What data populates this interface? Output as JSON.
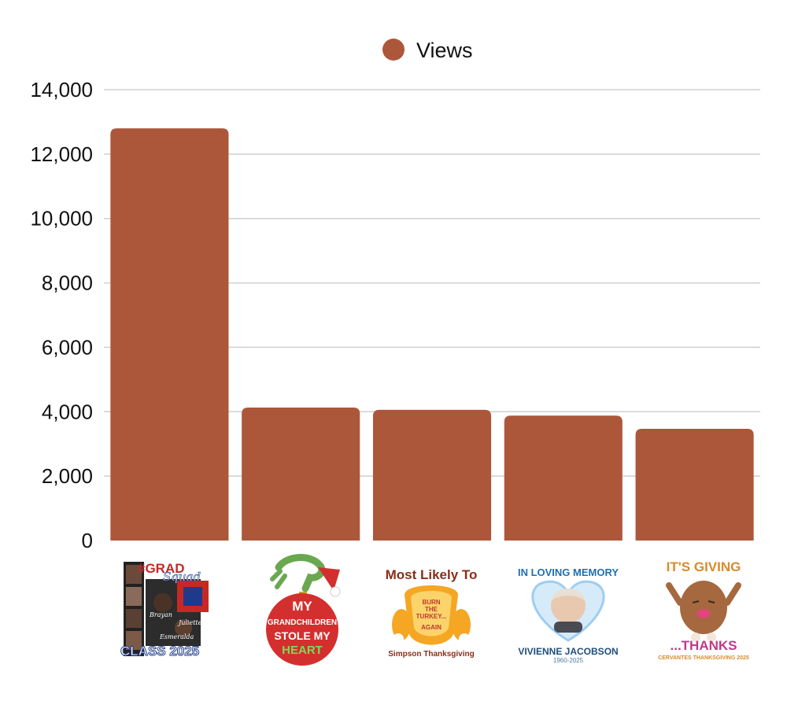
{
  "chart_data": {
    "type": "bar",
    "categories": [
      "#GRAD Squad Class 2025",
      "My Grandchildren Stole My Heart",
      "Most Likely To Burn The Turkey... Again - Simpson Thanksgiving",
      "In Loving Memory - Vivienne Jacobson 1960-2025",
      "It's Giving ...Thanks - Cervantes Thanksgiving 2025"
    ],
    "series": [
      {
        "name": "Views",
        "values": [
          12800,
          4130,
          4060,
          3880,
          3470
        ]
      }
    ],
    "ylim": [
      0,
      14000
    ],
    "yticks": [
      0,
      2000,
      4000,
      6000,
      8000,
      10000,
      12000,
      14000
    ],
    "ytick_labels": [
      "0",
      "2,000",
      "4,000",
      "6,000",
      "8,000",
      "10,000",
      "12,000",
      "14,000"
    ],
    "grid": true,
    "legend_position": "top-center",
    "bar_color": "#ad573a",
    "grid_color": "#cfcfcf"
  },
  "thumbnails": [
    {
      "icon": "grad-squad-photo-collage-icon",
      "lines": [
        "#GRAD",
        "Squad",
        "CLASS 2025"
      ],
      "names": [
        "Brayan",
        "Juliette",
        "Esmeralda"
      ]
    },
    {
      "icon": "grinch-hand-ornament-icon",
      "lines": [
        "MY",
        "GRANDCHILDREN",
        "STOLE MY",
        "HEART"
      ]
    },
    {
      "icon": "turkey-icon",
      "lines": [
        "Most Likely To",
        "BURN",
        "THE",
        "TURKEY...",
        "AGAIN",
        "Simpson Thanksgiving"
      ]
    },
    {
      "icon": "memorial-portrait-heart-icon",
      "lines": [
        "IN LOVING MEMORY",
        "VIVIENNE JACOBSON",
        "1960-2025"
      ]
    },
    {
      "icon": "giving-thanks-turkey-icon",
      "lines": [
        "IT'S GIVING",
        "...THANKS",
        "CERVANTES THANKSGIVING 2025"
      ]
    }
  ]
}
